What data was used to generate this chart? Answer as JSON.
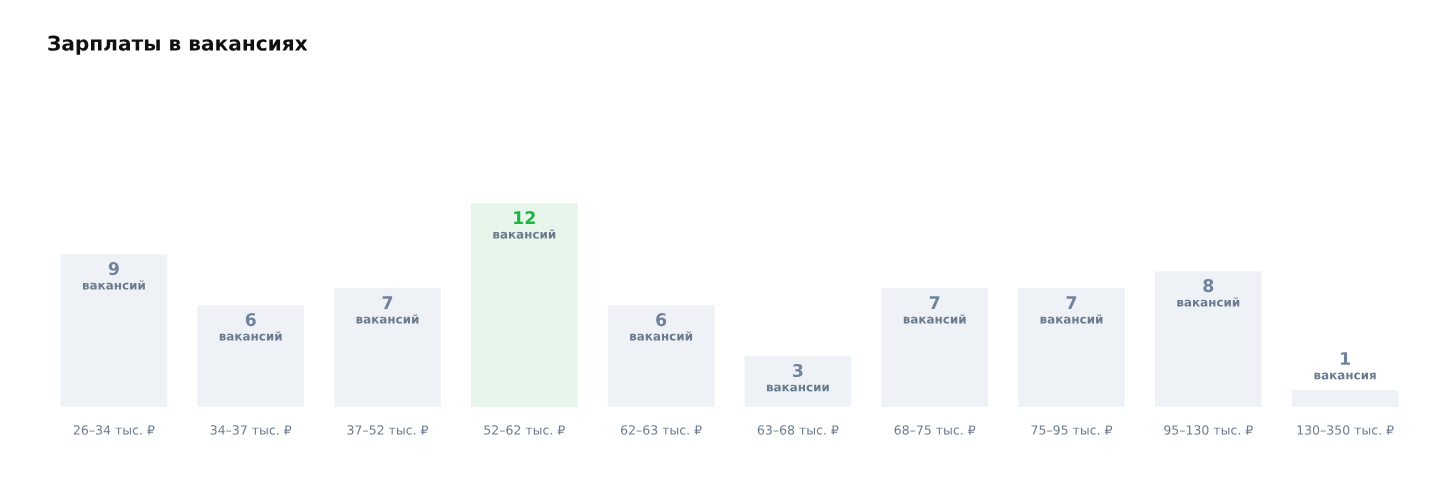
{
  "chart_data": {
    "type": "bar",
    "title": "Зарплаты в вакансиях",
    "categories": [
      "26–34 тыс. ₽",
      "34–37 тыс. ₽",
      "37–52 тыс. ₽",
      "52–62 тыс. ₽",
      "62–63 тыс. ₽",
      "63–68 тыс. ₽",
      "68–75 тыс. ₽",
      "75–95 тыс. ₽",
      "95–130 тыс. ₽",
      "130–350 тыс. ₽"
    ],
    "values": [
      9,
      6,
      7,
      12,
      6,
      3,
      7,
      7,
      8,
      1
    ],
    "colors": [
      "#eef2f7",
      "#eef2f7",
      "#eef2f7",
      "#e6f6ea",
      "#eef2f7",
      "#eef2f7",
      "#eef2f7",
      "#eef2f7",
      "#eef2f7",
      "#eef2f7"
    ],
    "value_labels": [
      "9\nвакансий",
      "6\nвакансий",
      "7\nвакансий",
      "12\nвакансий",
      "6\nвакансий",
      "3\nвакансии",
      "7\nвакансий",
      "7\nвакансий",
      "8\nвакансий",
      "1\nвакансия"
    ],
    "tick_labels": "x"
  }
}
